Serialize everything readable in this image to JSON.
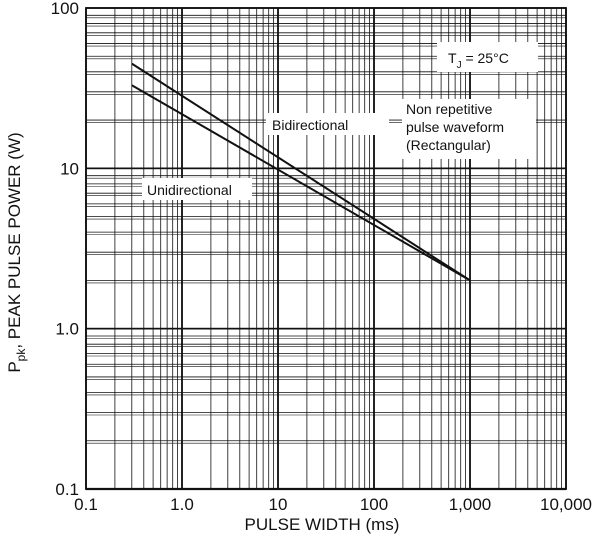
{
  "chart_data": {
    "type": "line",
    "x_scale": "log",
    "y_scale": "log",
    "xlim": [
      0.1,
      10000
    ],
    "ylim": [
      0.1,
      100
    ],
    "grid": true,
    "xlabel": "PULSE WIDTH (ms)",
    "ylabel": {
      "p": "P",
      "sub": "pk",
      "rest": ", PEAK PULSE POWER (W)"
    },
    "x_ticks": [
      "0.1",
      "1.0",
      "10",
      "100",
      "1,000",
      "10,000"
    ],
    "y_ticks": [
      "0.1",
      "1.0",
      "10",
      "100"
    ],
    "series": [
      {
        "name": "Bidirectional",
        "x": [
          0.3,
          1000
        ],
        "y": [
          45,
          2.0
        ]
      },
      {
        "name": "Unidirectional",
        "x": [
          0.3,
          1000
        ],
        "y": [
          33,
          2.0
        ]
      }
    ],
    "annotations": {
      "tj": {
        "t": "T",
        "sub": "J",
        "rest": " = 25°C"
      },
      "waveform": [
        "Non repetitive",
        "pulse waveform",
        "(Rectangular)"
      ]
    },
    "colors": {
      "line": "#111111",
      "grid": "#111111"
    }
  }
}
